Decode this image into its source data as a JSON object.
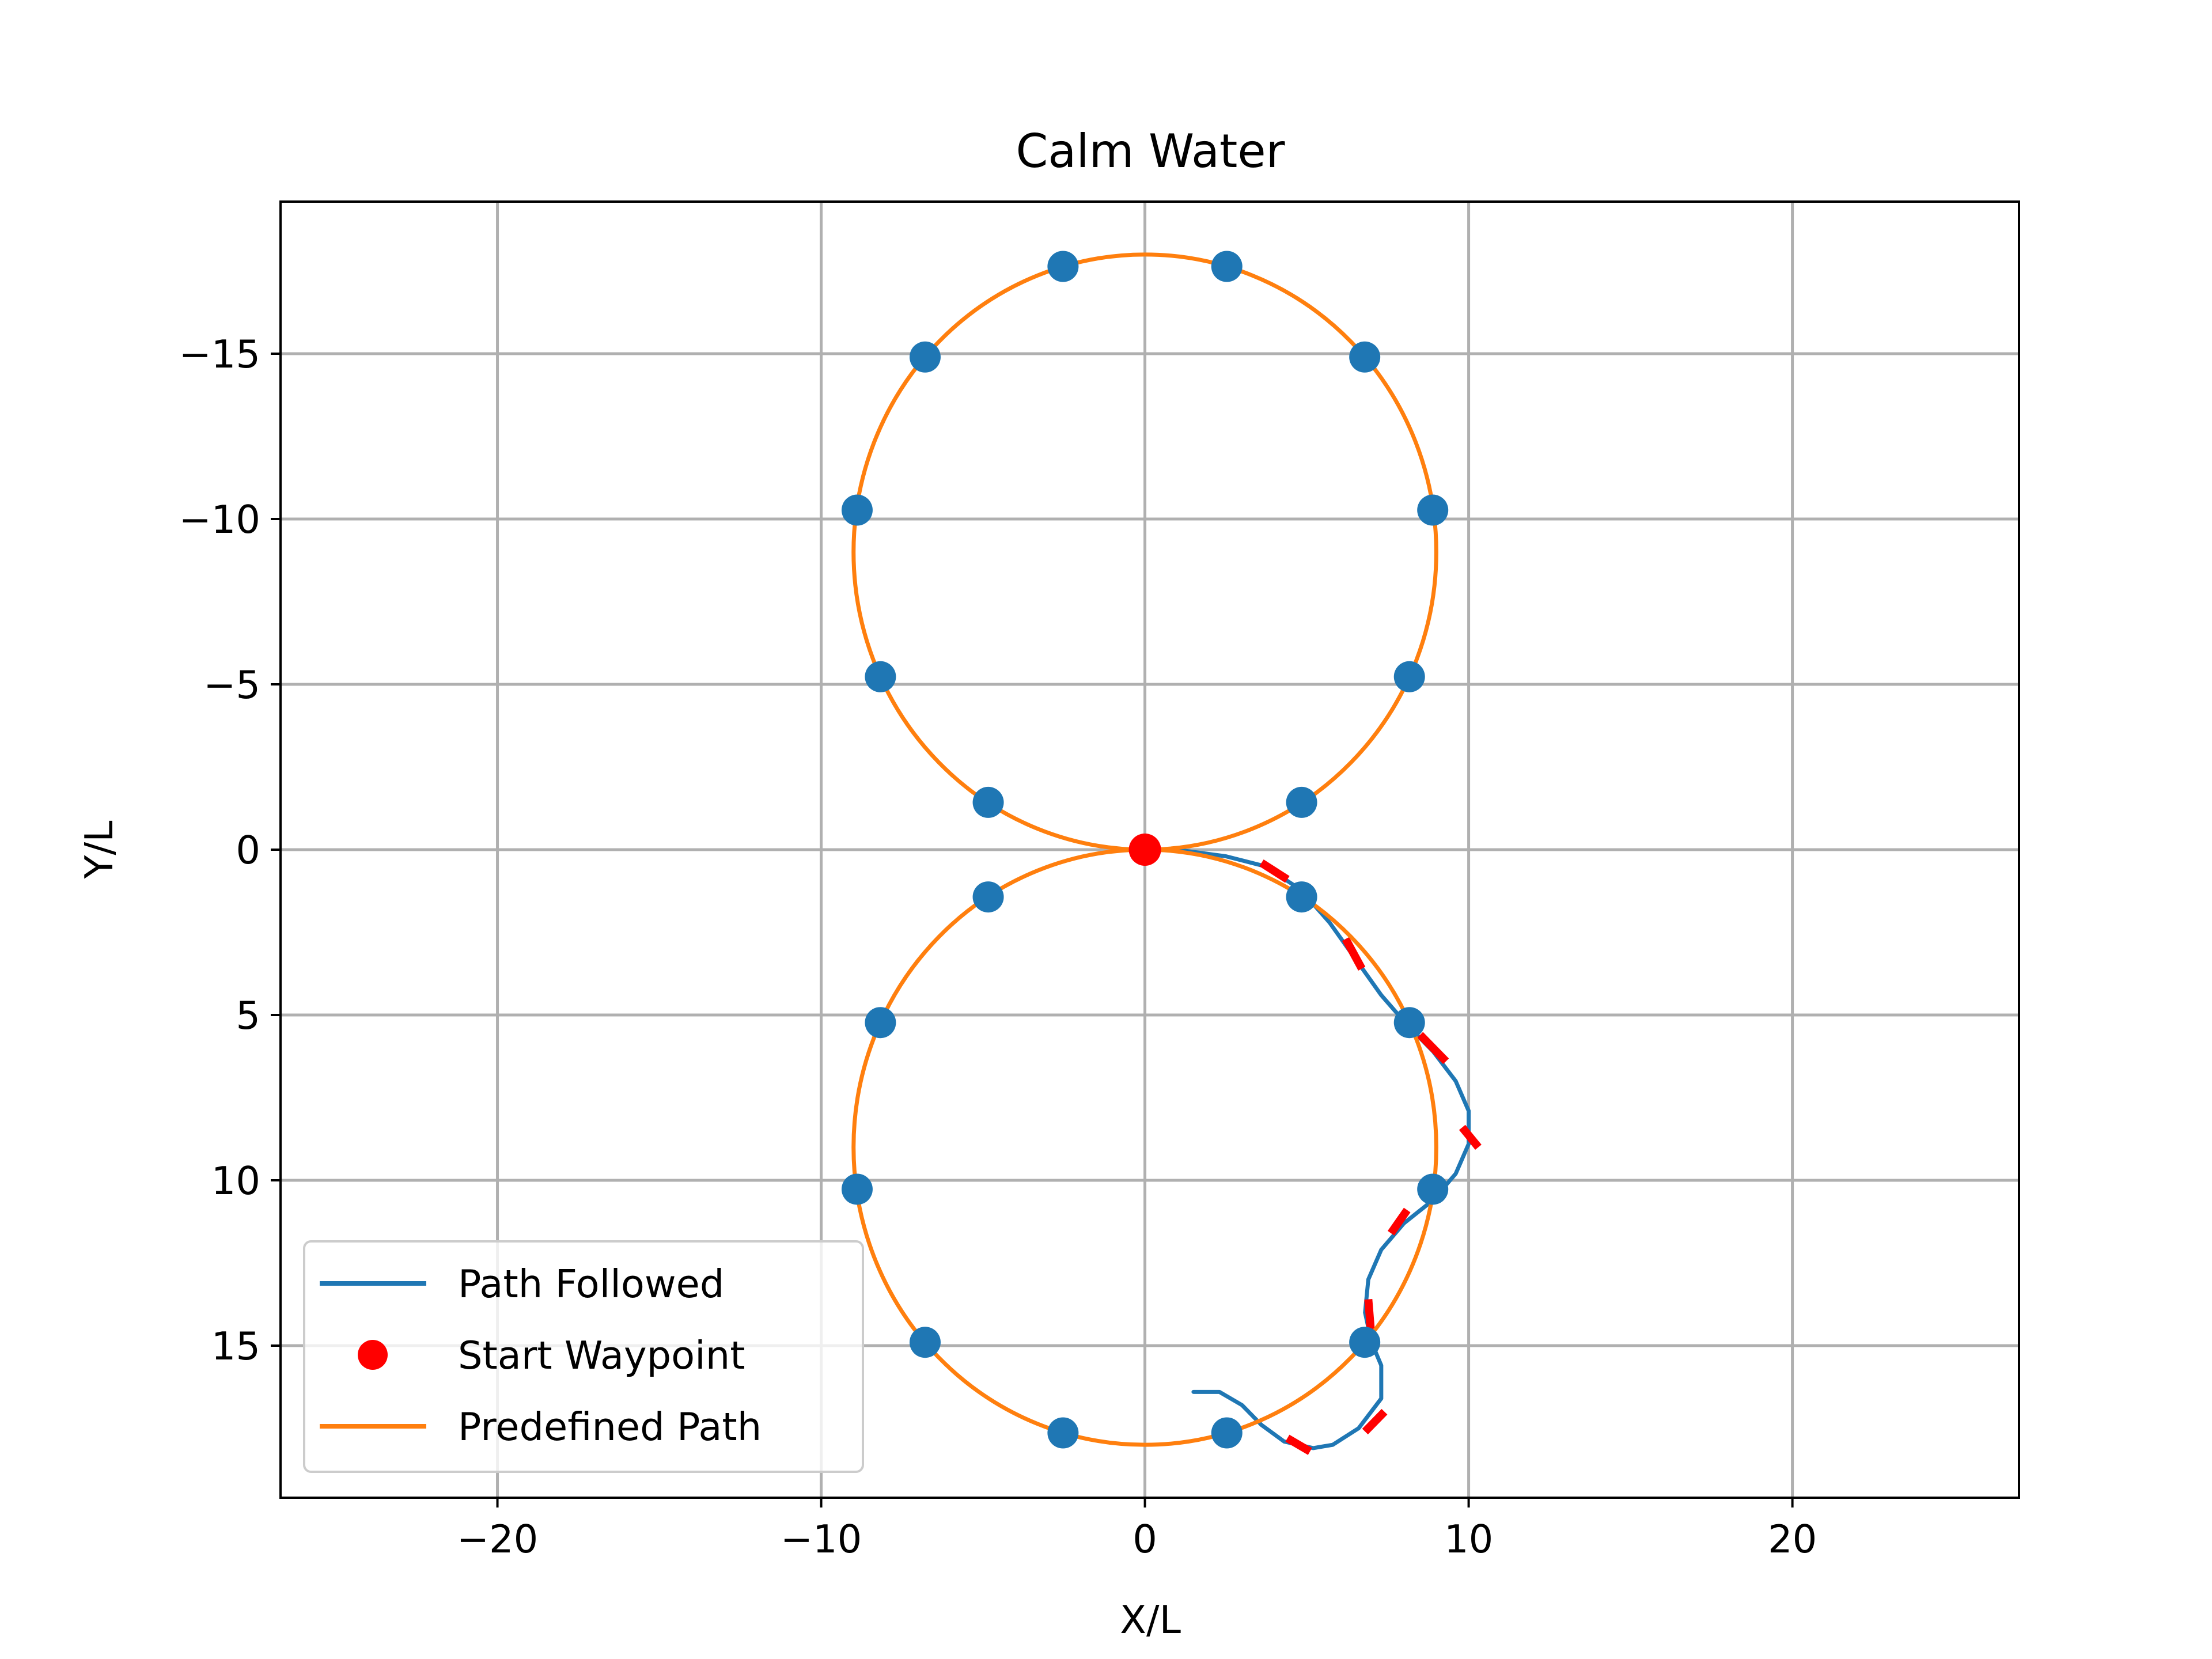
{
  "chart_data": {
    "type": "line",
    "title": "Calm Water",
    "xlabel": "X/L",
    "ylabel": "Y/L",
    "xlim": [
      -26.7,
      27.0
    ],
    "ylim": [
      -19.6,
      19.6
    ],
    "y_inverted": true,
    "grid": true,
    "legend_position": "lower-left",
    "x_ticks": [
      -20,
      -10,
      0,
      10,
      20
    ],
    "x_tick_labels": [
      "−20",
      "−10",
      "0",
      "10",
      "20"
    ],
    "y_ticks": [
      -15,
      -10,
      -5,
      0,
      5,
      10,
      15
    ],
    "y_tick_labels": [
      "−15",
      "−10",
      "−5",
      "0",
      "5",
      "10",
      "15"
    ],
    "colors": {
      "path_followed": "#1f77b4",
      "predefined_path": "#ff7f0e",
      "start_waypoint": "#ff0000",
      "waypoints": "#1f77b4",
      "deviation_segments": "#ff0000",
      "grid": "#b0b0b0"
    },
    "predefined_path": {
      "shape": "figure-eight",
      "circles": [
        {
          "cx": 0,
          "cy": -9,
          "r": 9
        },
        {
          "cx": 0,
          "cy": 9,
          "r": 9
        }
      ]
    },
    "waypoints": [
      [
        2.53,
        -17.64
      ],
      [
        6.79,
        -14.9
      ],
      [
        8.89,
        -10.27
      ],
      [
        8.17,
        -5.23
      ],
      [
        4.84,
        -1.43
      ],
      [
        -2.53,
        -17.64
      ],
      [
        -6.79,
        -14.9
      ],
      [
        -8.89,
        -10.27
      ],
      [
        -8.17,
        -5.23
      ],
      [
        -4.84,
        -1.43
      ],
      [
        4.84,
        1.43
      ],
      [
        8.17,
        5.23
      ],
      [
        8.89,
        10.27
      ],
      [
        6.79,
        14.9
      ],
      [
        2.53,
        17.64
      ],
      [
        -4.84,
        1.43
      ],
      [
        -8.17,
        5.23
      ],
      [
        -8.89,
        10.27
      ],
      [
        -6.79,
        14.9
      ],
      [
        -2.53,
        17.64
      ]
    ],
    "start_waypoint": [
      0,
      0
    ],
    "path_followed": [
      [
        0,
        0
      ],
      [
        1.2,
        0.03
      ],
      [
        2.5,
        0.2
      ],
      [
        3.7,
        0.5
      ],
      [
        4.8,
        1.2
      ],
      [
        5.7,
        2.2
      ],
      [
        6.5,
        3.3
      ],
      [
        7.3,
        4.4
      ],
      [
        8.1,
        5.3
      ],
      [
        8.9,
        6.1
      ],
      [
        9.6,
        7.0
      ],
      [
        10.0,
        7.9
      ],
      [
        10.0,
        8.9
      ],
      [
        9.6,
        9.8
      ],
      [
        8.9,
        10.6
      ],
      [
        8.0,
        11.3
      ],
      [
        7.3,
        12.1
      ],
      [
        6.9,
        13.0
      ],
      [
        6.8,
        14.0
      ],
      [
        7.0,
        14.9
      ],
      [
        7.3,
        15.6
      ],
      [
        7.3,
        16.6
      ],
      [
        6.6,
        17.5
      ],
      [
        5.8,
        18.0
      ],
      [
        5.2,
        18.1
      ],
      [
        4.3,
        17.9
      ],
      [
        3.6,
        17.4
      ],
      [
        3.0,
        16.8
      ],
      [
        2.3,
        16.4
      ],
      [
        1.5,
        16.4
      ]
    ],
    "deviation_segments": [
      [
        [
          3.6,
          0.4
        ],
        [
          4.4,
          0.9
        ]
      ],
      [
        [
          6.2,
          2.7
        ],
        [
          6.7,
          3.6
        ]
      ],
      [
        [
          8.5,
          5.6
        ],
        [
          9.3,
          6.4
        ]
      ],
      [
        [
          9.8,
          8.4
        ],
        [
          10.3,
          9.0
        ]
      ],
      [
        [
          7.6,
          11.6
        ],
        [
          8.1,
          10.9
        ]
      ],
      [
        [
          6.9,
          13.6
        ],
        [
          7.0,
          14.8
        ]
      ],
      [
        [
          6.8,
          17.6
        ],
        [
          7.4,
          17.0
        ]
      ],
      [
        [
          4.4,
          17.8
        ],
        [
          5.1,
          18.2
        ]
      ]
    ],
    "legend": [
      {
        "label": "Path Followed",
        "type": "line",
        "color": "#1f77b4"
      },
      {
        "label": "Start Waypoint",
        "type": "marker",
        "color": "#ff0000"
      },
      {
        "label": "Predefined Path",
        "type": "line",
        "color": "#ff7f0e"
      }
    ]
  }
}
